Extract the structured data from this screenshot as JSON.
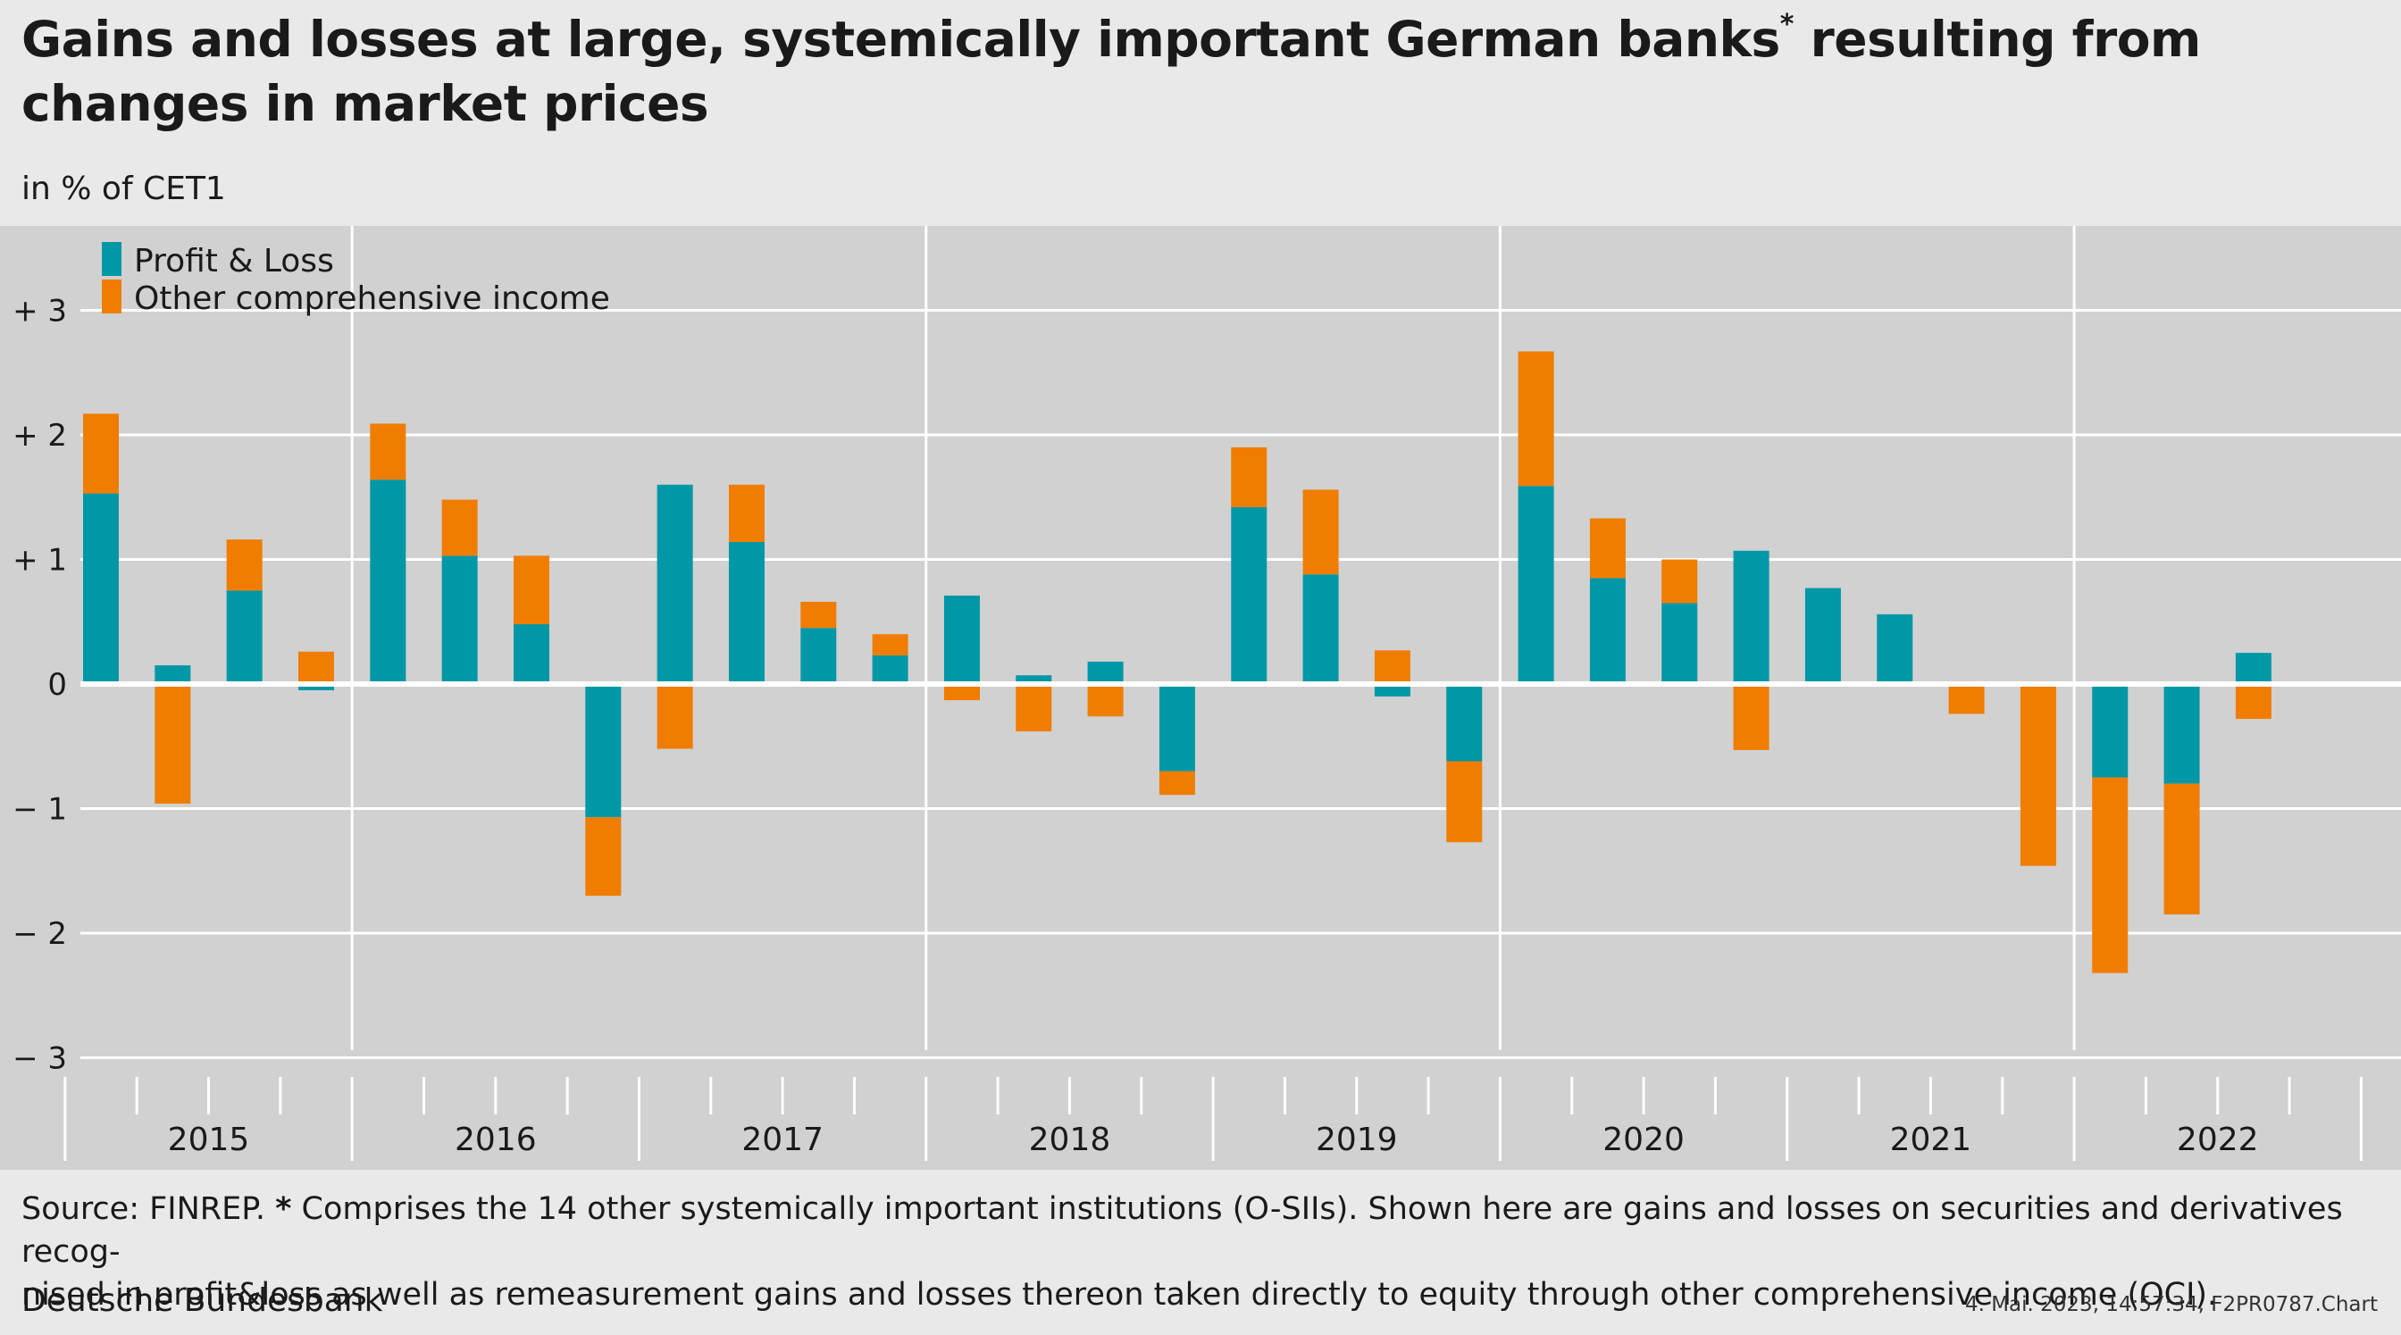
{
  "title": {
    "text_before": "Gains and losses at large, systemically important German banks",
    "marker": "*",
    "text_after": " resulting from changes in market prices"
  },
  "subtitle": "in % of CET1",
  "colors": {
    "profit_loss": "#0097a6",
    "oci": "#f07d00",
    "plot_background": "#d1d1d1",
    "page_background": "#e9e9e9",
    "gridline": "#ffffff"
  },
  "chart_data": {
    "type": "bar",
    "stacked": true,
    "ylabel": "in % of CET1",
    "ylim": [
      -3.2,
      3.4
    ],
    "yticks": [
      {
        "value": 3,
        "label": "+ 3"
      },
      {
        "value": 2,
        "label": "+ 2"
      },
      {
        "value": 1,
        "label": "+ 1"
      },
      {
        "value": 0,
        "label": "0"
      },
      {
        "value": -1,
        "label": "− 1"
      },
      {
        "value": -2,
        "label": "− 2"
      },
      {
        "value": -3,
        "label": "− 3"
      }
    ],
    "years": [
      "2015",
      "2016",
      "2017",
      "2018",
      "2019",
      "2020",
      "2021",
      "2022"
    ],
    "quarters_per_year": 4,
    "legend_position": "top-left",
    "grid": true,
    "series": [
      {
        "name": "Profit & Loss",
        "color": "#0097a6",
        "values": [
          1.53,
          0.15,
          0.75,
          -0.05,
          1.64,
          1.03,
          0.48,
          -1.07,
          1.6,
          1.14,
          0.45,
          0.23,
          0.71,
          0.07,
          0.18,
          -0.7,
          1.42,
          0.88,
          -0.1,
          -0.62,
          1.59,
          0.85,
          0.65,
          1.07,
          0.77,
          0.56,
          0.0,
          0.0,
          -0.75,
          -0.8,
          0.25,
          0.0
        ]
      },
      {
        "name": "Other comprehensive income",
        "color": "#f07d00",
        "values": [
          0.64,
          -0.96,
          0.41,
          0.26,
          0.45,
          0.45,
          0.55,
          -0.63,
          -0.52,
          0.46,
          0.21,
          0.17,
          -0.13,
          -0.38,
          -0.26,
          -0.19,
          0.48,
          0.68,
          0.27,
          -0.65,
          1.08,
          0.48,
          0.35,
          -0.53,
          0.0,
          0.0,
          -0.24,
          -1.46,
          -1.57,
          -1.05,
          -0.28,
          0.0
        ]
      }
    ]
  },
  "source_note": {
    "lead": "Source: FINREP. ",
    "marker": "*",
    "line1": " Comprises the 14 other systemically important institutions (O-SIIs). Shown here are gains and losses on securities and derivatives recog-",
    "line2": "nised in profit&loss as well as remeasurement gains and losses thereon taken directly to equity through other comprehensive income (OCI)."
  },
  "publisher": "Deutsche Bundesbank",
  "timestamp": "4. Mai. 2023, 14:57:34, F2PR0787.Chart"
}
